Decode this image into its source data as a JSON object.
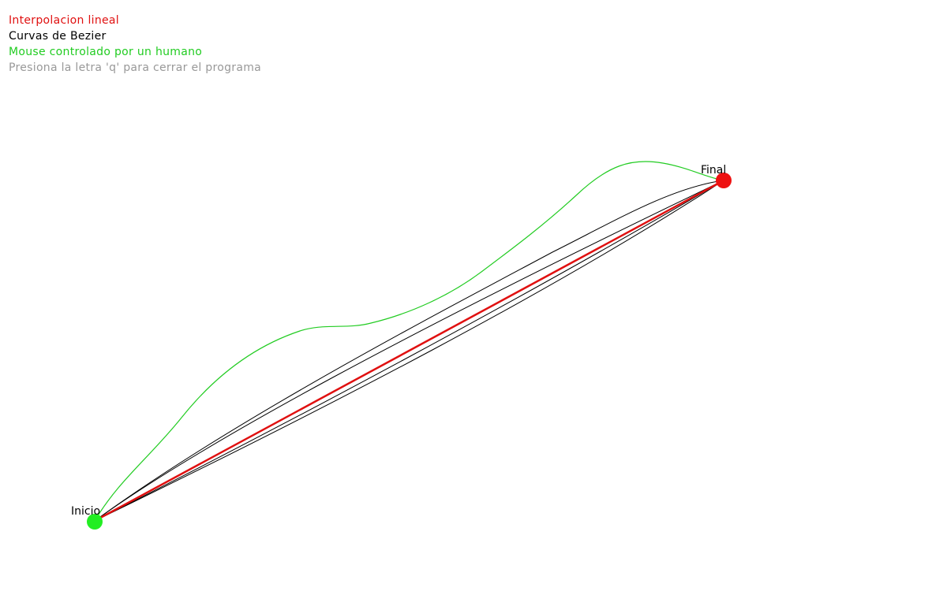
{
  "legend": {
    "linear": "Interpolacion lineal",
    "bezier": "Curvas de Bezier",
    "human": "Mouse controlado por un humano",
    "quit_hint": "Presiona la letra 'q' para cerrar el programa"
  },
  "points": {
    "start_label": "Inicio",
    "end_label": "Final"
  },
  "colors": {
    "linear": "#e01010",
    "bezier": "#000000",
    "human": "#22cc22",
    "hint": "#999999",
    "start_marker": "#22ee22",
    "end_marker": "#ee1111"
  }
}
